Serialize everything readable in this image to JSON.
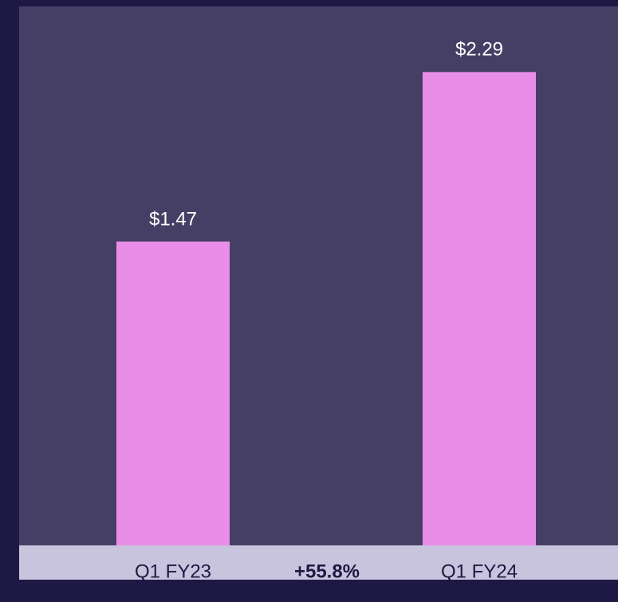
{
  "chart_data": {
    "type": "bar",
    "categories": [
      "Q1 FY23",
      "Q1 FY24"
    ],
    "values": [
      1.47,
      2.29
    ],
    "value_labels": [
      "$1.47",
      "$2.29"
    ],
    "annotation": "+55.8%",
    "color": "#e98ee8",
    "ylim": [
      0,
      2.6
    ]
  }
}
